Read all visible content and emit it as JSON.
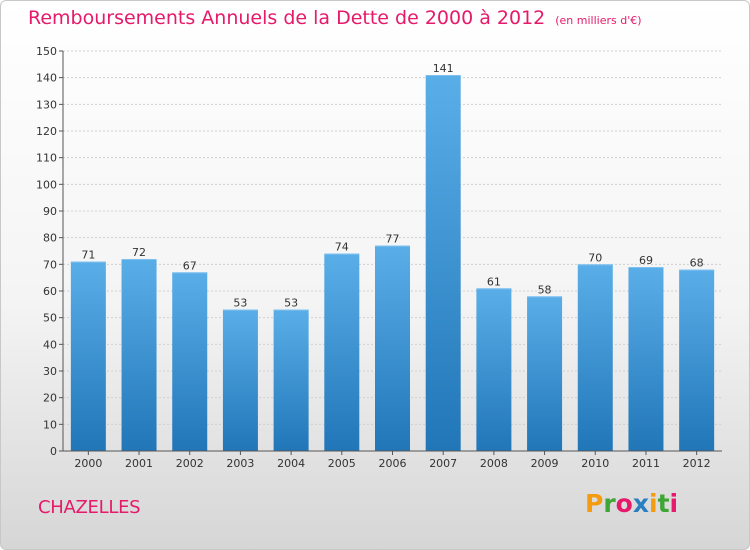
{
  "header": {
    "title": "Remboursements Annuels de la Dette de 2000 à 2012",
    "unit": "(en milliers d'€)"
  },
  "footer": {
    "commune": "CHAZELLES",
    "logo": [
      "P",
      "r",
      "o",
      "x",
      "i",
      "t",
      "i"
    ],
    "logo_colors": [
      "#f39c12",
      "#3fa535",
      "#e6196a",
      "#2a7fc1",
      "#f39c12",
      "#3fa535",
      "#e6196a"
    ]
  },
  "chart_data": {
    "type": "bar",
    "title": "Remboursements Annuels de la Dette de 2000 à 2012",
    "categories": [
      "2000",
      "2001",
      "2002",
      "2003",
      "2004",
      "2005",
      "2006",
      "2007",
      "2008",
      "2009",
      "2010",
      "2011",
      "2012"
    ],
    "values": [
      71,
      72,
      67,
      53,
      53,
      74,
      77,
      141,
      61,
      58,
      70,
      69,
      68
    ],
    "ylim": [
      0,
      150
    ],
    "yticks": [
      0,
      10,
      20,
      30,
      40,
      50,
      60,
      70,
      80,
      90,
      100,
      110,
      120,
      130,
      140,
      150
    ],
    "grid": true,
    "bar_color_top": "#5aaee8",
    "bar_color_bottom": "#2176b8"
  }
}
